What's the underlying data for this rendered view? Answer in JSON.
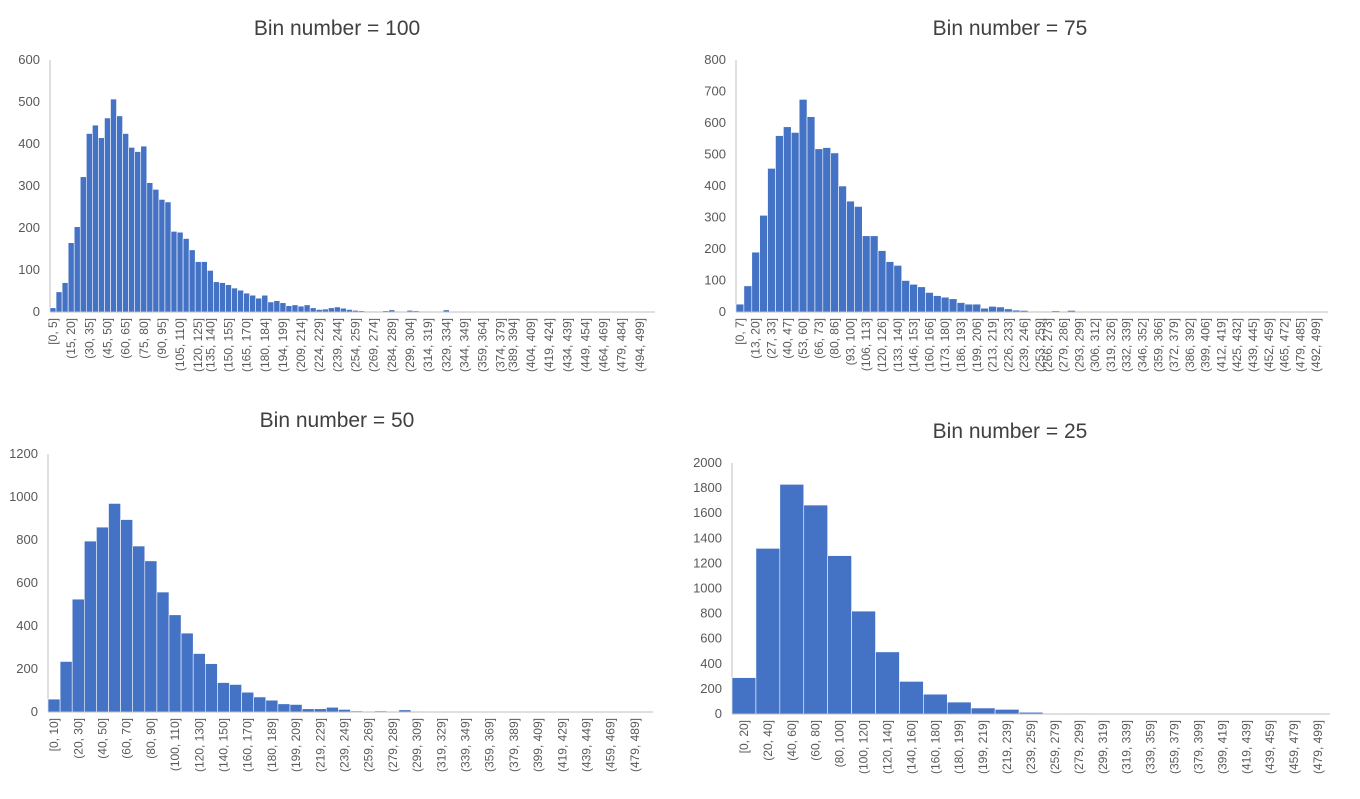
{
  "chart_data": [
    {
      "type": "bar",
      "title": "Bin number = 100",
      "ylim": [
        0,
        600
      ],
      "yticks": [
        "0",
        "100",
        "200",
        "300",
        "400",
        "500",
        "600"
      ],
      "n_bins": 100,
      "x_labels": [
        "[0, 5]",
        "(15, 20]",
        "(30, 35]",
        "(45, 50]",
        "(60, 65]",
        "(75, 80]",
        "(90, 95]",
        "(105, 110]",
        "(120, 125]",
        "(135, 140]",
        "(150, 155]",
        "(165, 170]",
        "(180, 184]",
        "(194, 199]",
        "(209, 214]",
        "(224, 229]",
        "(239, 244]",
        "(254, 259]",
        "(269, 274]",
        "(284, 289]",
        "(299, 304]",
        "(314, 319]",
        "(329, 334]",
        "(344, 349]",
        "(359, 364]",
        "(374, 379]",
        "(389, 394]",
        "(404, 409]",
        "(419, 424]",
        "(434, 439]",
        "(449, 454]",
        "(464, 469]",
        "(479, 484]",
        "(494, 499]"
      ],
      "values": [
        10,
        48,
        70,
        165,
        203,
        322,
        425,
        445,
        415,
        462,
        507,
        467,
        425,
        392,
        382,
        395,
        308,
        292,
        268,
        262,
        192,
        190,
        175,
        148,
        120,
        120,
        99,
        72,
        70,
        65,
        57,
        52,
        45,
        40,
        33,
        40,
        24,
        27,
        22,
        15,
        17,
        14,
        17,
        10,
        6,
        7,
        10,
        12,
        9,
        6,
        4,
        3,
        2,
        2,
        1,
        3,
        5,
        2,
        1,
        4,
        3,
        2,
        1,
        1,
        0,
        5,
        1,
        1,
        1,
        1,
        1,
        0,
        0,
        0,
        0,
        0,
        0,
        0,
        0,
        0,
        0,
        0,
        0,
        0,
        0,
        0,
        0,
        0,
        0,
        0,
        0,
        0,
        0,
        0,
        0,
        0,
        0,
        0,
        0,
        0
      ]
    },
    {
      "type": "bar",
      "title": "Bin number = 75",
      "ylim": [
        0,
        800
      ],
      "yticks": [
        "0",
        "100",
        "200",
        "300",
        "400",
        "500",
        "600",
        "700",
        "800"
      ],
      "n_bins": 75,
      "x_labels": [
        "[0, 7]",
        "(13, 20]",
        "(27, 33]",
        "(40, 47]",
        "(53, 60]",
        "(66, 73]",
        "(80, 86]",
        "(93, 100]",
        "(106, 113]",
        "(120, 126]",
        "(133, 140]",
        "(146, 153]",
        "(160, 166]",
        "(173, 180]",
        "(186, 193]",
        "(199, 206]",
        "(213, 219]",
        "(226, 233]",
        "(239, 246]",
        "(253, 259]",
        "(266, 273]",
        "(279, 286]",
        "(293, 299]",
        "(306, 312]",
        "(319, 326]",
        "(332, 339]",
        "(346, 352]",
        "(359, 366]",
        "(372, 379]",
        "(386, 392]",
        "(399, 406]",
        "(412, 419]",
        "(425, 432]",
        "(439, 445]",
        "(452, 459]",
        "(465, 472]",
        "(479, 485]",
        "(492, 499]"
      ],
      "values": [
        25,
        83,
        190,
        307,
        456,
        560,
        588,
        570,
        675,
        620,
        518,
        522,
        505,
        400,
        352,
        335,
        242,
        242,
        195,
        160,
        148,
        100,
        88,
        80,
        62,
        52,
        47,
        42,
        30,
        25,
        25,
        12,
        18,
        16,
        10,
        6,
        5,
        2,
        2,
        1,
        4,
        0,
        5,
        1,
        1,
        1,
        1,
        0,
        0,
        0,
        0,
        0,
        0,
        0,
        0,
        0,
        0,
        0,
        0,
        0,
        0,
        0,
        0,
        0,
        0,
        0,
        0,
        0,
        0,
        0,
        0,
        0,
        0,
        0,
        0
      ]
    },
    {
      "type": "bar",
      "title": "Bin number = 50",
      "ylim": [
        0,
        1200
      ],
      "yticks": [
        "0",
        "200",
        "400",
        "600",
        "800",
        "1000",
        "1200"
      ],
      "n_bins": 50,
      "x_labels": [
        "[0, 10]",
        "(20, 30]",
        "(40, 50]",
        "(60, 70]",
        "(80, 90]",
        "(100, 110]",
        "(120, 130]",
        "(140, 150]",
        "(160, 170]",
        "(180, 189]",
        "(199, 209]",
        "(219, 229]",
        "(239, 249]",
        "(259, 269]",
        "(279, 289]",
        "(299, 309]",
        "(319, 329]",
        "(339, 349]",
        "(359, 369]",
        "(379, 389]",
        "(399, 409]",
        "(419, 429]",
        "(439, 449]",
        "(459, 469]",
        "(479, 489]"
      ],
      "values": [
        60,
        235,
        525,
        795,
        860,
        970,
        895,
        772,
        703,
        558,
        452,
        367,
        272,
        225,
        137,
        128,
        92,
        70,
        55,
        38,
        35,
        15,
        15,
        22,
        12,
        5,
        3,
        5,
        2,
        10,
        3,
        2,
        1,
        1,
        1,
        0,
        0,
        0,
        0,
        0,
        0,
        0,
        0,
        0,
        0,
        0,
        0,
        0,
        0,
        0
      ]
    },
    {
      "type": "bar",
      "title": "Bin number = 25",
      "ylim": [
        0,
        2000
      ],
      "yticks": [
        "0",
        "200",
        "400",
        "600",
        "800",
        "1000",
        "1200",
        "1400",
        "1600",
        "1800",
        "2000"
      ],
      "n_bins": 25,
      "x_labels": [
        "[0, 20]",
        "(20, 40]",
        "(40, 60]",
        "(60, 80]",
        "(80, 100]",
        "(100, 120]",
        "(120, 140]",
        "(140, 160]",
        "(160, 180]",
        "(180, 199]",
        "(199, 219]",
        "(219, 239]",
        "(239, 259]",
        "(259, 279]",
        "(279, 299]",
        "(299, 319]",
        "(319, 339]",
        "(339, 359]",
        "(359, 379]",
        "(379, 399]",
        "(399, 419]",
        "(419, 439]",
        "(439, 459]",
        "(459, 479]",
        "(479, 499]"
      ],
      "values": [
        290,
        1320,
        1830,
        1665,
        1262,
        820,
        495,
        260,
        158,
        95,
        48,
        37,
        14,
        6,
        5,
        3,
        2,
        2,
        1,
        1,
        1,
        1,
        1,
        1,
        1
      ]
    }
  ]
}
